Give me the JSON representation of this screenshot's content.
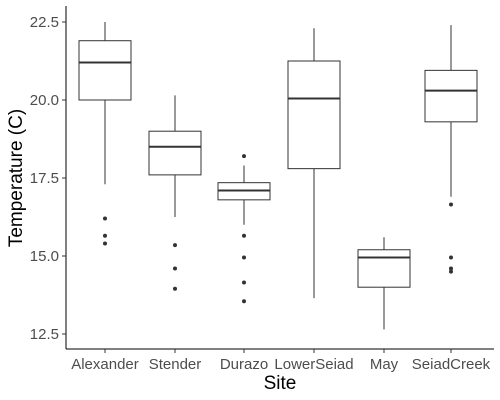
{
  "chart_data": {
    "type": "boxplot",
    "xlabel": "Site",
    "ylabel": "Temperature (C)",
    "ylim": [
      12.0,
      22.8
    ],
    "yticks": [
      12.5,
      15.0,
      17.5,
      20.0,
      22.5
    ],
    "ytick_labels": [
      "12.5",
      "15.0",
      "17.5",
      "20.0",
      "22.5"
    ],
    "categories": [
      "Alexander",
      "Stender",
      "Durazo",
      "LowerSeiad",
      "May",
      "SeiadCreek"
    ],
    "boxes": [
      {
        "category": "Alexander",
        "whisker_low": 17.3,
        "q1": 20.0,
        "median": 21.2,
        "q3": 21.9,
        "whisker_high": 22.5,
        "outliers": [
          16.2,
          15.65,
          15.4
        ]
      },
      {
        "category": "Stender",
        "whisker_low": 16.25,
        "q1": 17.6,
        "median": 18.5,
        "q3": 19.0,
        "whisker_high": 20.15,
        "outliers": [
          15.35,
          14.6,
          13.95
        ]
      },
      {
        "category": "Durazo",
        "whisker_low": 16.0,
        "q1": 16.8,
        "median": 17.1,
        "q3": 17.35,
        "whisker_high": 17.9,
        "outliers": [
          18.2,
          15.65,
          14.95,
          14.15,
          13.55
        ]
      },
      {
        "category": "LowerSeiad",
        "whisker_low": 13.65,
        "q1": 17.8,
        "median": 20.05,
        "q3": 21.25,
        "whisker_high": 22.3,
        "outliers": []
      },
      {
        "category": "May",
        "whisker_low": 12.65,
        "q1": 14.0,
        "median": 14.95,
        "q3": 15.2,
        "whisker_high": 15.6,
        "outliers": []
      },
      {
        "category": "SeiadCreek",
        "whisker_low": 16.9,
        "q1": 19.3,
        "median": 20.3,
        "q3": 20.95,
        "whisker_high": 22.4,
        "outliers": [
          16.65,
          14.95,
          14.6,
          14.5
        ]
      }
    ],
    "title": "",
    "grid": false,
    "legend": "none"
  }
}
